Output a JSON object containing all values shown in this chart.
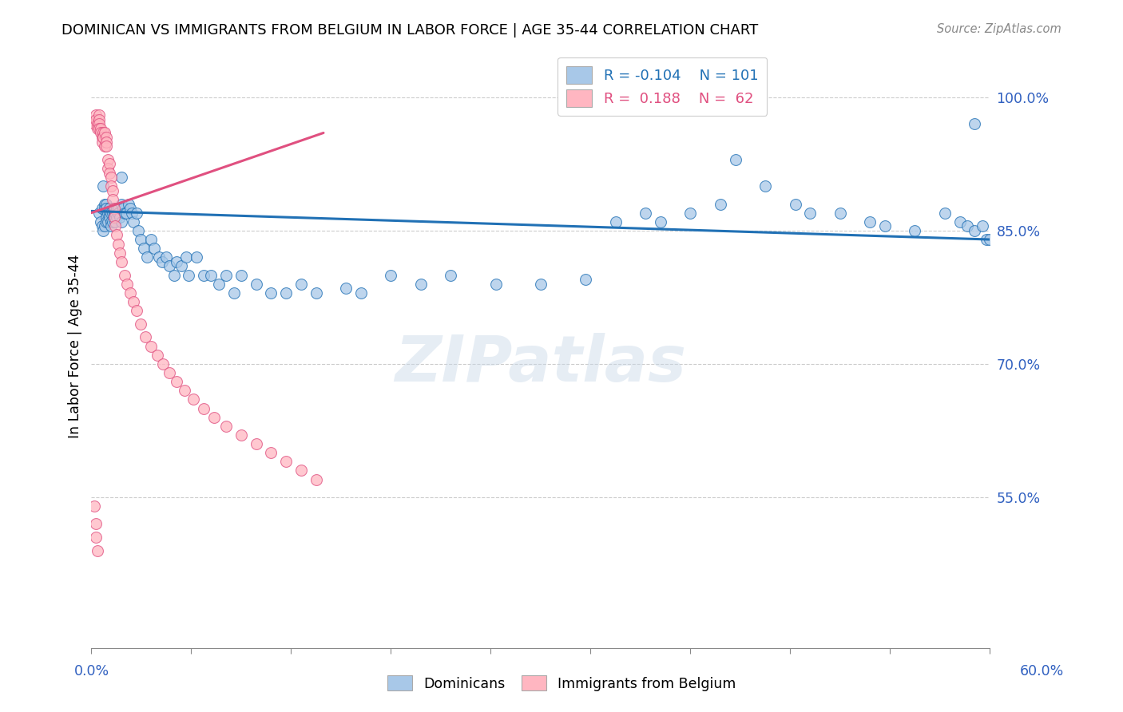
{
  "title": "DOMINICAN VS IMMIGRANTS FROM BELGIUM IN LABOR FORCE | AGE 35-44 CORRELATION CHART",
  "source": "Source: ZipAtlas.com",
  "ylabel": "In Labor Force | Age 35-44",
  "ytick_labels": [
    "100.0%",
    "85.0%",
    "70.0%",
    "55.0%"
  ],
  "ytick_values": [
    1.0,
    0.85,
    0.7,
    0.55
  ],
  "xlim": [
    0.0,
    0.6
  ],
  "ylim": [
    0.38,
    1.06
  ],
  "blue_color": "#a8c8e8",
  "blue_line_color": "#2171b5",
  "pink_color": "#ffb6c1",
  "pink_line_color": "#e05080",
  "legend_R_blue": "-0.104",
  "legend_N_blue": "101",
  "legend_R_pink": "0.188",
  "legend_N_pink": "62",
  "watermark": "ZIPatlas",
  "blue_trend_x": [
    0.0,
    0.6
  ],
  "blue_trend_y": [
    0.872,
    0.84
  ],
  "pink_trend_x": [
    0.0,
    0.155
  ],
  "pink_trend_y": [
    0.87,
    0.96
  ],
  "blue_x": [
    0.005,
    0.006,
    0.007,
    0.007,
    0.008,
    0.008,
    0.009,
    0.009,
    0.009,
    0.01,
    0.01,
    0.01,
    0.01,
    0.01,
    0.011,
    0.011,
    0.012,
    0.012,
    0.012,
    0.013,
    0.013,
    0.013,
    0.014,
    0.014,
    0.015,
    0.015,
    0.015,
    0.016,
    0.016,
    0.017,
    0.017,
    0.018,
    0.018,
    0.019,
    0.02,
    0.02,
    0.02,
    0.021,
    0.022,
    0.023,
    0.025,
    0.026,
    0.027,
    0.028,
    0.03,
    0.031,
    0.033,
    0.035,
    0.037,
    0.04,
    0.042,
    0.045,
    0.047,
    0.05,
    0.052,
    0.055,
    0.057,
    0.06,
    0.063,
    0.065,
    0.07,
    0.075,
    0.08,
    0.085,
    0.09,
    0.095,
    0.1,
    0.11,
    0.12,
    0.13,
    0.14,
    0.15,
    0.17,
    0.18,
    0.2,
    0.22,
    0.24,
    0.27,
    0.3,
    0.33,
    0.35,
    0.37,
    0.38,
    0.4,
    0.42,
    0.43,
    0.45,
    0.47,
    0.48,
    0.5,
    0.52,
    0.53,
    0.55,
    0.57,
    0.58,
    0.585,
    0.59,
    0.595,
    0.598,
    0.6,
    0.59
  ],
  "blue_y": [
    0.87,
    0.86,
    0.875,
    0.855,
    0.9,
    0.85,
    0.88,
    0.875,
    0.855,
    0.88,
    0.875,
    0.87,
    0.865,
    0.86,
    0.87,
    0.86,
    0.875,
    0.87,
    0.865,
    0.87,
    0.86,
    0.855,
    0.87,
    0.86,
    0.875,
    0.87,
    0.865,
    0.87,
    0.86,
    0.875,
    0.865,
    0.875,
    0.87,
    0.865,
    0.91,
    0.88,
    0.86,
    0.875,
    0.87,
    0.87,
    0.88,
    0.875,
    0.87,
    0.86,
    0.87,
    0.85,
    0.84,
    0.83,
    0.82,
    0.84,
    0.83,
    0.82,
    0.815,
    0.82,
    0.81,
    0.8,
    0.815,
    0.81,
    0.82,
    0.8,
    0.82,
    0.8,
    0.8,
    0.79,
    0.8,
    0.78,
    0.8,
    0.79,
    0.78,
    0.78,
    0.79,
    0.78,
    0.785,
    0.78,
    0.8,
    0.79,
    0.8,
    0.79,
    0.79,
    0.795,
    0.86,
    0.87,
    0.86,
    0.87,
    0.88,
    0.93,
    0.9,
    0.88,
    0.87,
    0.87,
    0.86,
    0.855,
    0.85,
    0.87,
    0.86,
    0.855,
    0.85,
    0.855,
    0.84,
    0.84,
    0.97
  ],
  "pink_x": [
    0.002,
    0.003,
    0.003,
    0.004,
    0.004,
    0.005,
    0.005,
    0.005,
    0.005,
    0.006,
    0.006,
    0.007,
    0.007,
    0.008,
    0.008,
    0.009,
    0.009,
    0.01,
    0.01,
    0.01,
    0.011,
    0.011,
    0.012,
    0.012,
    0.013,
    0.013,
    0.014,
    0.014,
    0.015,
    0.015,
    0.016,
    0.017,
    0.018,
    0.019,
    0.02,
    0.022,
    0.024,
    0.026,
    0.028,
    0.03,
    0.033,
    0.036,
    0.04,
    0.044,
    0.048,
    0.052,
    0.057,
    0.062,
    0.068,
    0.075,
    0.082,
    0.09,
    0.1,
    0.11,
    0.12,
    0.13,
    0.14,
    0.15,
    0.002,
    0.003,
    0.003,
    0.004
  ],
  "pink_y": [
    0.97,
    0.98,
    0.975,
    0.97,
    0.965,
    0.98,
    0.975,
    0.97,
    0.965,
    0.965,
    0.96,
    0.955,
    0.95,
    0.96,
    0.955,
    0.96,
    0.945,
    0.955,
    0.95,
    0.945,
    0.93,
    0.92,
    0.925,
    0.915,
    0.91,
    0.9,
    0.895,
    0.885,
    0.875,
    0.865,
    0.855,
    0.845,
    0.835,
    0.825,
    0.815,
    0.8,
    0.79,
    0.78,
    0.77,
    0.76,
    0.745,
    0.73,
    0.72,
    0.71,
    0.7,
    0.69,
    0.68,
    0.67,
    0.66,
    0.65,
    0.64,
    0.63,
    0.62,
    0.61,
    0.6,
    0.59,
    0.58,
    0.57,
    0.54,
    0.52,
    0.505,
    0.49
  ]
}
